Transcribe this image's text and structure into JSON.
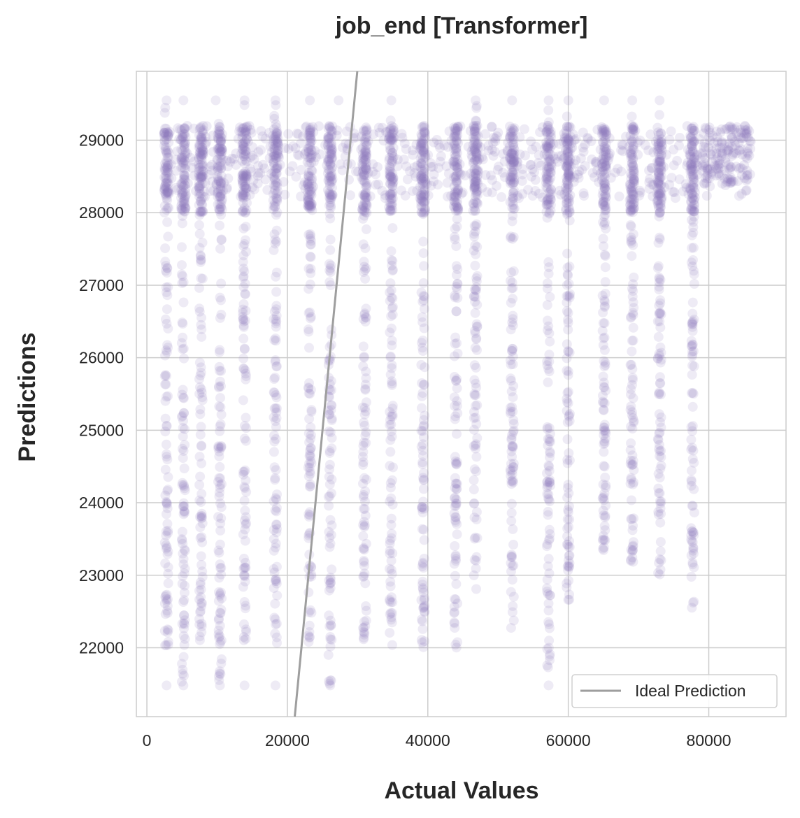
{
  "chart_data": {
    "type": "scatter",
    "title": "job_end [Transformer]",
    "xlabel": "Actual Values",
    "ylabel": "Predictions",
    "xlim": [
      -1500,
      91000
    ],
    "ylim": [
      21050,
      29950
    ],
    "xticks": [
      0,
      20000,
      40000,
      60000,
      80000
    ],
    "yticks": [
      22000,
      23000,
      24000,
      25000,
      26000,
      27000,
      28000,
      29000
    ],
    "grid": true,
    "point_color": "#8a7bbf",
    "point_opacity": 0.15,
    "legend": {
      "position": "lower-right",
      "entries": [
        {
          "label": "Ideal Prediction",
          "color": "#9e9e9e"
        }
      ]
    },
    "reference_line": {
      "label": "Ideal Prediction",
      "x": [
        21050,
        29950
      ],
      "y": [
        21050,
        29950
      ],
      "color": "#9e9e9e"
    },
    "series": [
      {
        "x_columns": [
          2800,
          5200,
          7700,
          10400,
          13900,
          18300,
          23200,
          26100,
          31000,
          34800,
          39300,
          44000,
          46800,
          52000,
          57200,
          60000,
          65100,
          69100,
          73000,
          77700
        ],
        "column_ranges": [
          [
            22000,
            29500
          ],
          [
            21500,
            29500
          ],
          [
            22000,
            29100
          ],
          [
            21500,
            29500
          ],
          [
            22000,
            29500
          ],
          [
            22000,
            29500
          ],
          [
            22000,
            29500
          ],
          [
            21500,
            29100
          ],
          [
            22000,
            29500
          ],
          [
            22000,
            29500
          ],
          [
            22000,
            29100
          ],
          [
            22000,
            29100
          ],
          [
            22800,
            29500
          ],
          [
            22200,
            29500
          ],
          [
            21500,
            29500
          ],
          [
            22600,
            29500
          ],
          [
            23300,
            29500
          ],
          [
            22900,
            29500
          ],
          [
            23000,
            29500
          ],
          [
            22400,
            29100
          ]
        ],
        "dense_band": [
          28000,
          29200
        ],
        "filler_x_range": [
          2500,
          86000
        ],
        "right_cluster": {
          "x": [
            79000,
            86000
          ],
          "y": [
            28400,
            29200
          ]
        },
        "sample_points": [
          [
            2800,
            21480
          ],
          [
            5200,
            21480
          ],
          [
            10400,
            21480
          ],
          [
            13900,
            21480
          ],
          [
            18300,
            21480
          ],
          [
            26100,
            21480
          ],
          [
            57200,
            21480
          ],
          [
            2800,
            29550
          ],
          [
            5200,
            29550
          ],
          [
            9800,
            29550
          ],
          [
            13900,
            29550
          ],
          [
            18300,
            29550
          ],
          [
            23200,
            29550
          ],
          [
            27300,
            29550
          ],
          [
            34800,
            29550
          ],
          [
            46800,
            29550
          ],
          [
            52000,
            29550
          ],
          [
            57200,
            29550
          ],
          [
            60000,
            29550
          ],
          [
            65100,
            29550
          ],
          [
            69100,
            29550
          ],
          [
            73000,
            29550
          ]
        ]
      }
    ]
  }
}
